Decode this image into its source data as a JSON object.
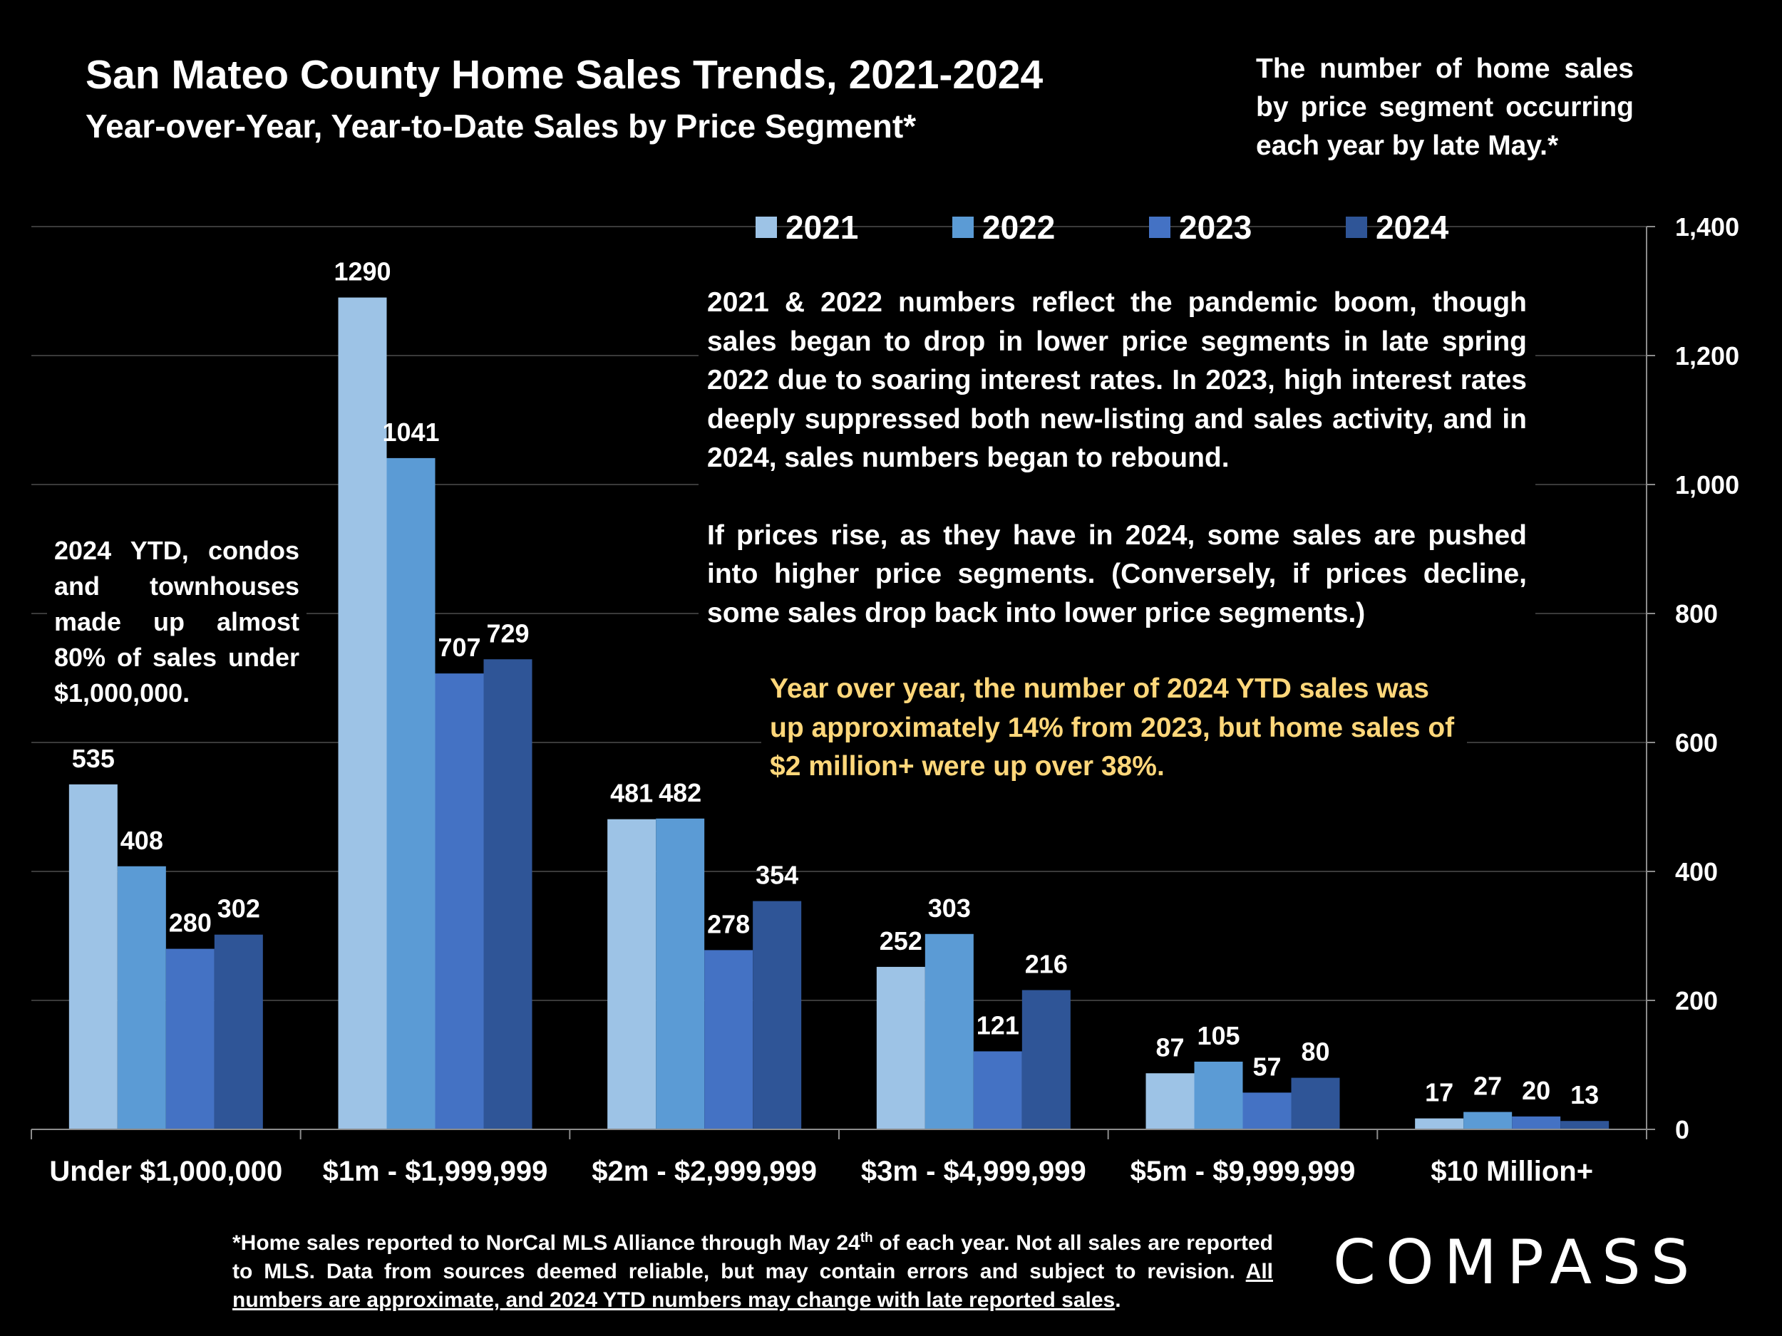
{
  "header": {
    "title": "San Mateo County Home Sales Trends, 2021-2024",
    "subtitle": "Year-over-Year, Year-to-Date Sales by Price Segment*"
  },
  "top_note": "The number of home sales by price segment occurring each year by late May.*",
  "annotations": {
    "main_p1": "2021 & 2022 numbers reflect the pandemic boom, though sales began to drop in lower price segments in late spring 2022 due to soaring interest rates. In 2023, high interest rates deeply suppressed both new-listing and sales activity, and in 2024, sales numbers began to rebound.",
    "main_p2": "If prices rise, as they have in 2024, some sales are pushed into higher price segments. (Conversely, if prices decline, some sales drop back into lower price segments.)",
    "yoy": "Year over year, the number of 2024 YTD sales was up approximately 14% from 2023, but home sales of $2 million+ were up over 38%.",
    "condo": "2024 YTD, condos and townhouses made up almost 80% of sales under $1,000,000."
  },
  "footnote": {
    "part1": "*Home sales reported to NorCal MLS Alliance through May 24",
    "sup": "th",
    "part2": " of each year. Not all sales are reported to MLS. Data from sources deemed reliable, but may contain errors and subject to revision. ",
    "underlined": "All numbers are approximate, and 2024 YTD numbers may change with late reported sales",
    "end": "."
  },
  "logo": "COMPASS",
  "chart_data": {
    "type": "bar",
    "categories": [
      "Under $1,000,000",
      "$1m - $1,999,999",
      "$2m - $2,999,999",
      "$3m - $4,999,999",
      "$5m - $9,999,999",
      "$10 Million+"
    ],
    "series": [
      {
        "name": "2021",
        "color": "#9dc3e6",
        "values": [
          535,
          1290,
          481,
          252,
          87,
          17
        ]
      },
      {
        "name": "2022",
        "color": "#5b9bd5",
        "values": [
          408,
          1041,
          482,
          303,
          105,
          27
        ]
      },
      {
        "name": "2023",
        "color": "#4472c4",
        "values": [
          280,
          707,
          278,
          121,
          57,
          20
        ]
      },
      {
        "name": "2024",
        "color": "#2f5597",
        "values": [
          302,
          729,
          354,
          216,
          80,
          13
        ]
      }
    ],
    "ylim": [
      0,
      1400
    ],
    "yticks": [
      0,
      200,
      400,
      600,
      800,
      1000,
      1200,
      1400
    ],
    "ytick_labels": [
      "0",
      "200",
      "400",
      "600",
      "800",
      "1,000",
      "1,200",
      "1,400"
    ],
    "y_axis_side": "right",
    "grid": true,
    "legend_position": "top"
  }
}
